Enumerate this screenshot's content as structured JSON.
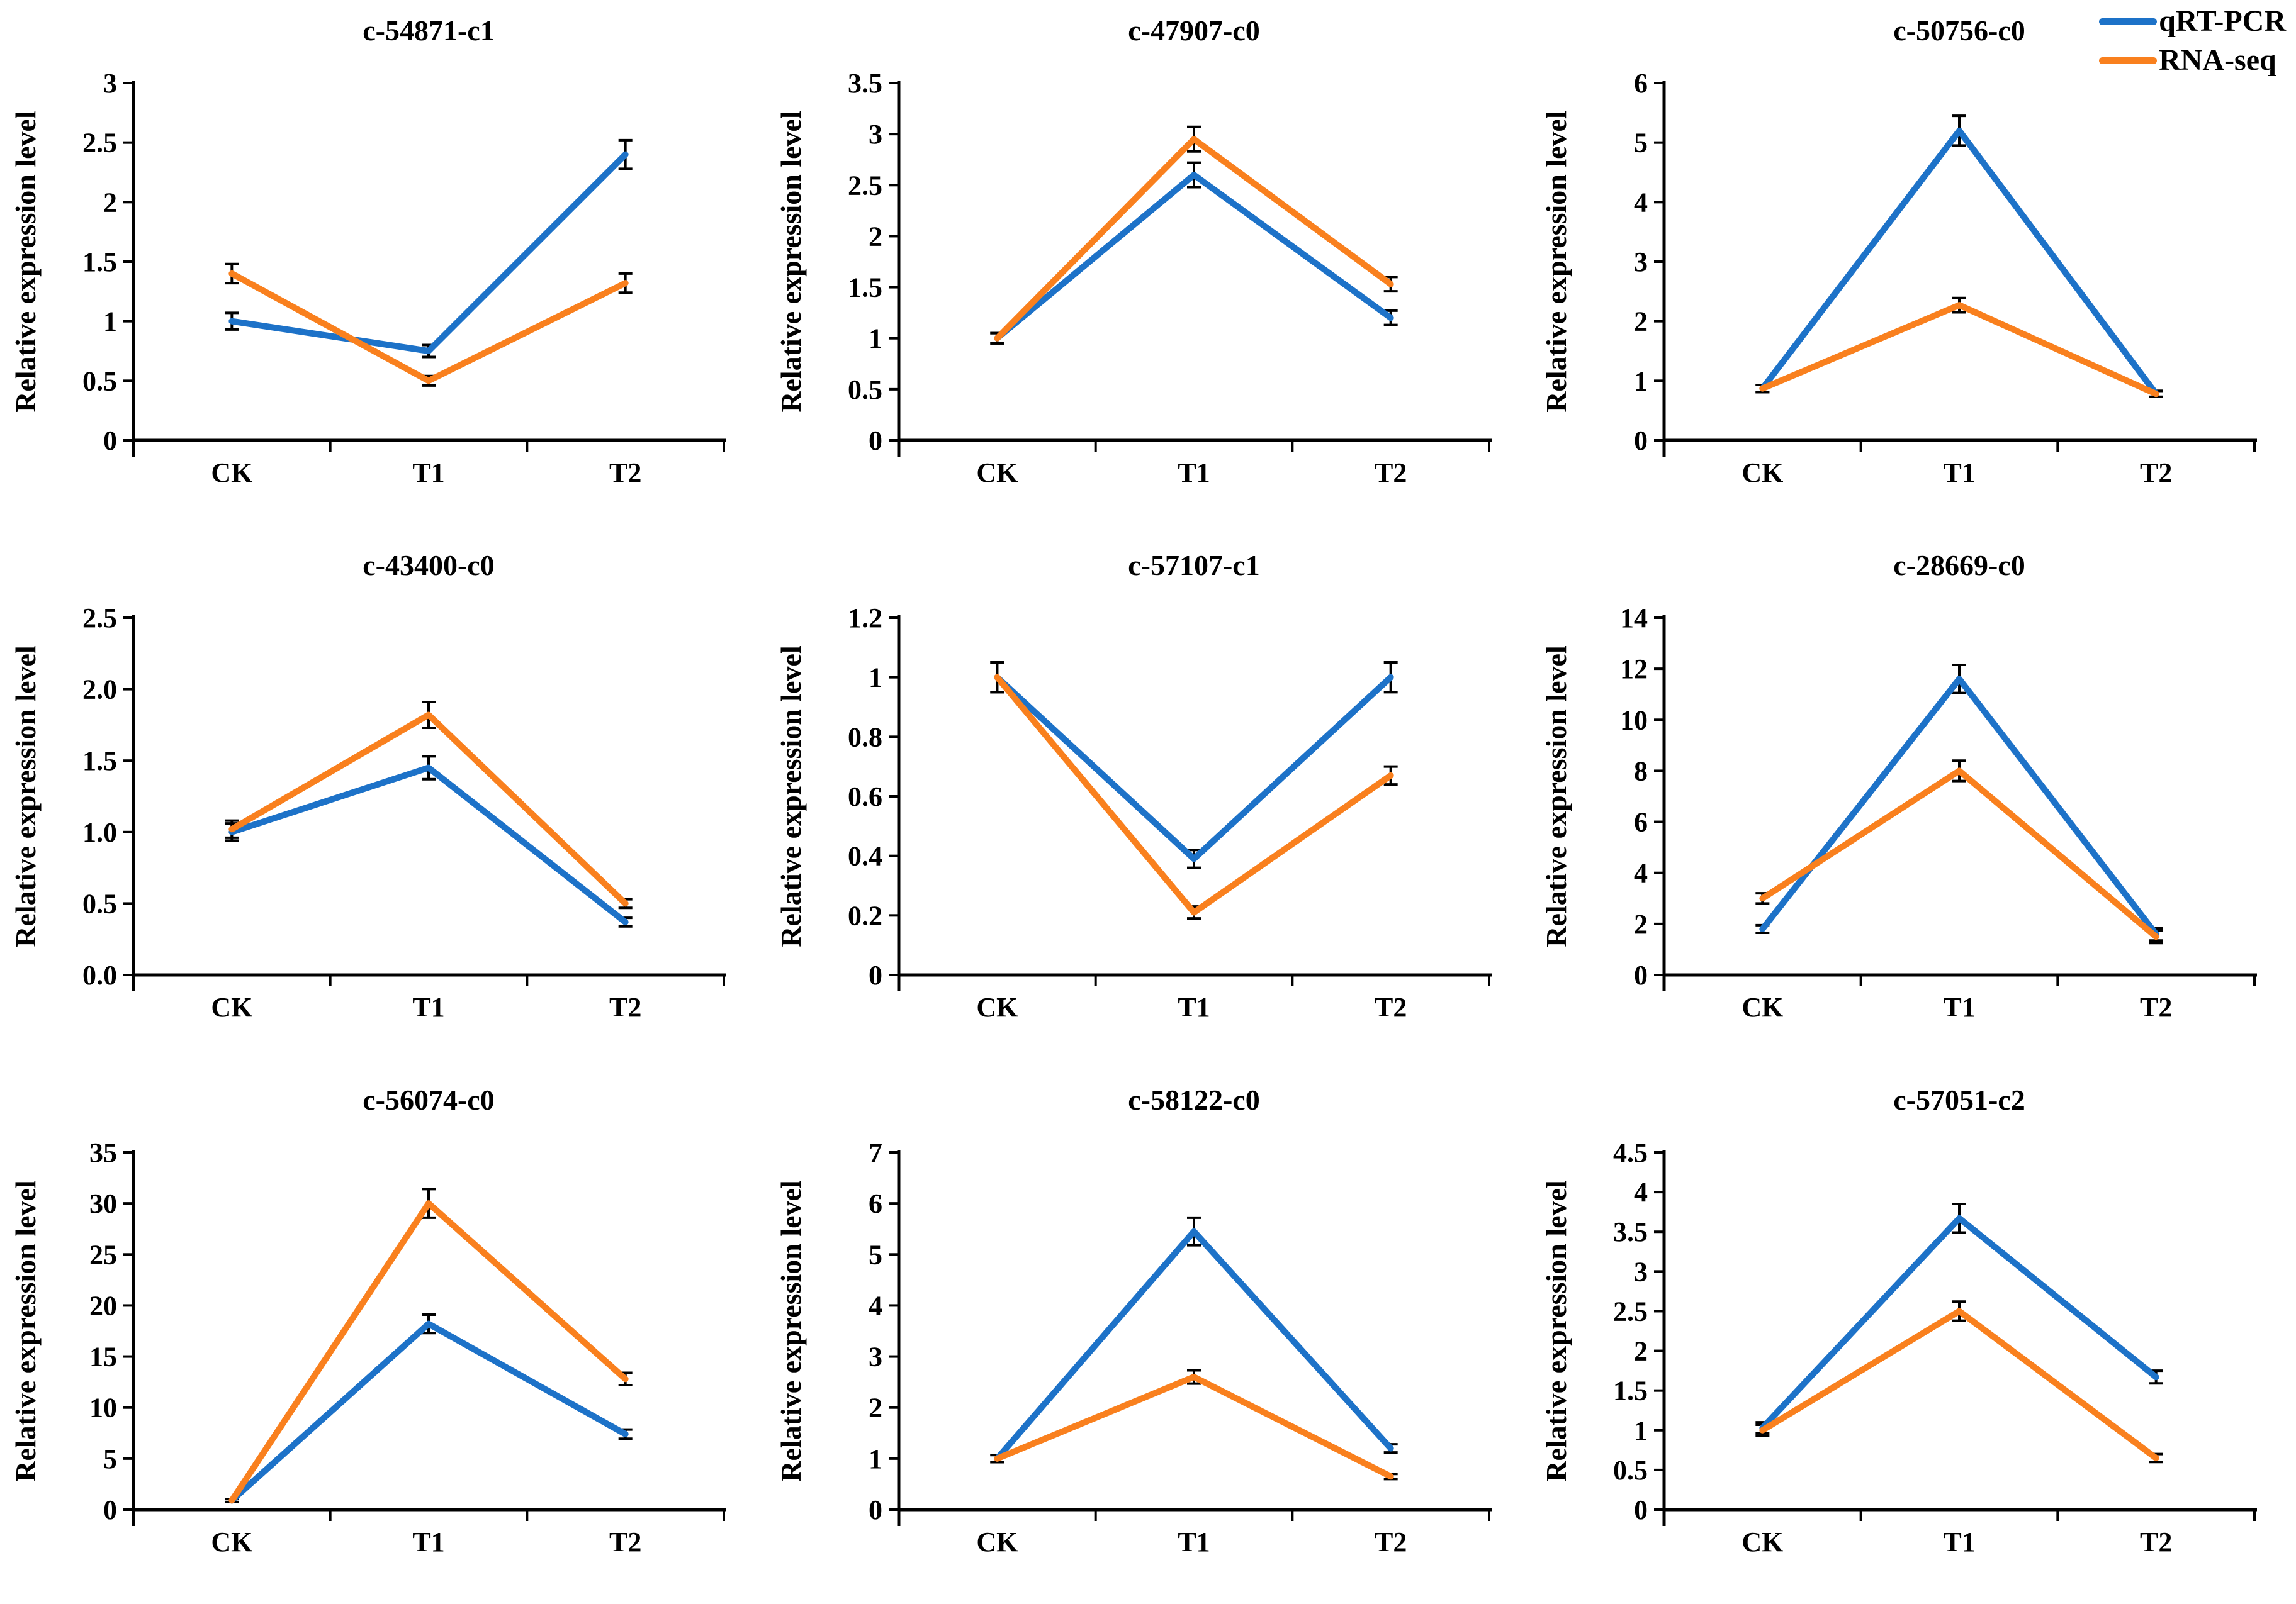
{
  "legend": {
    "position": "top-right",
    "items": [
      {
        "label": "qRT-PCR",
        "color": "#1d72c8"
      },
      {
        "label": "RNA-seq",
        "color": "#f9801e"
      }
    ]
  },
  "chart_data": [
    {
      "type": "line",
      "title": "c-54871-c1",
      "categories": [
        "CK",
        "T1",
        "T2"
      ],
      "xlabel": "",
      "ylabel": "Relative expression level",
      "ylim": [
        0,
        3
      ],
      "yticks": [
        "0",
        "0.5",
        "1",
        "1.5",
        "2",
        "2.5",
        "3"
      ],
      "grid": false,
      "series": [
        {
          "name": "qRT-PCR",
          "color": "#1d72c8",
          "values": [
            1.0,
            0.75,
            2.4
          ],
          "errors": [
            0.07,
            0.05,
            0.12
          ]
        },
        {
          "name": "RNA-seq",
          "color": "#f9801e",
          "values": [
            1.4,
            0.5,
            1.32
          ],
          "errors": [
            0.08,
            0.04,
            0.08
          ]
        }
      ]
    },
    {
      "type": "line",
      "title": "c-47907-c0",
      "categories": [
        "CK",
        "T1",
        "T2"
      ],
      "xlabel": "",
      "ylabel": "Relative expression level",
      "ylim": [
        0,
        3.5
      ],
      "yticks": [
        "0",
        "0.5",
        "1",
        "1.5",
        "2",
        "2.5",
        "3",
        "3.5"
      ],
      "grid": false,
      "series": [
        {
          "name": "qRT-PCR",
          "color": "#1d72c8",
          "values": [
            1.0,
            2.6,
            1.2
          ],
          "errors": [
            0.05,
            0.12,
            0.07
          ]
        },
        {
          "name": "RNA-seq",
          "color": "#f9801e",
          "values": [
            1.0,
            2.95,
            1.53
          ],
          "errors": [
            0.05,
            0.12,
            0.07
          ]
        }
      ]
    },
    {
      "type": "line",
      "title": "c-50756-c0",
      "categories": [
        "CK",
        "T1",
        "T2"
      ],
      "xlabel": "",
      "ylabel": "Relative expression level",
      "ylim": [
        0,
        6
      ],
      "yticks": [
        "0",
        "1",
        "2",
        "3",
        "4",
        "5",
        "6"
      ],
      "grid": false,
      "series": [
        {
          "name": "qRT-PCR",
          "color": "#1d72c8",
          "values": [
            0.87,
            5.2,
            0.78
          ],
          "errors": [
            0.06,
            0.25,
            0.05
          ]
        },
        {
          "name": "RNA-seq",
          "color": "#f9801e",
          "values": [
            0.87,
            2.27,
            0.78
          ],
          "errors": [
            0.06,
            0.12,
            0.05
          ]
        }
      ]
    },
    {
      "type": "line",
      "title": "c-43400-c0",
      "categories": [
        "CK",
        "T1",
        "T2"
      ],
      "xlabel": "",
      "ylabel": "Relative expression level",
      "ylim": [
        0,
        2.5
      ],
      "yticks": [
        "0.0",
        "0.5",
        "1.0",
        "1.5",
        "2.0",
        "2.5"
      ],
      "grid": false,
      "series": [
        {
          "name": "qRT-PCR",
          "color": "#1d72c8",
          "values": [
            1.0,
            1.45,
            0.37
          ],
          "errors": [
            0.06,
            0.08,
            0.03
          ]
        },
        {
          "name": "RNA-seq",
          "color": "#f9801e",
          "values": [
            1.02,
            1.82,
            0.5
          ],
          "errors": [
            0.06,
            0.09,
            0.03
          ]
        }
      ]
    },
    {
      "type": "line",
      "title": "c-57107-c1",
      "categories": [
        "CK",
        "T1",
        "T2"
      ],
      "xlabel": "",
      "ylabel": "Relative expression level",
      "ylim": [
        0,
        1.2
      ],
      "yticks": [
        "0",
        "0.2",
        "0.4",
        "0.6",
        "0.8",
        "1",
        "1.2"
      ],
      "grid": false,
      "series": [
        {
          "name": "qRT-PCR",
          "color": "#1d72c8",
          "values": [
            1.0,
            0.39,
            1.0
          ],
          "errors": [
            0.05,
            0.03,
            0.05
          ]
        },
        {
          "name": "RNA-seq",
          "color": "#f9801e",
          "values": [
            1.0,
            0.21,
            0.67
          ],
          "errors": [
            0.05,
            0.02,
            0.03
          ]
        }
      ]
    },
    {
      "type": "line",
      "title": "c-28669-c0",
      "categories": [
        "CK",
        "T1",
        "T2"
      ],
      "xlabel": "",
      "ylabel": "Relative expression level",
      "ylim": [
        0,
        14
      ],
      "yticks": [
        "0",
        "2",
        "4",
        "6",
        "8",
        "10",
        "12",
        "14"
      ],
      "grid": false,
      "series": [
        {
          "name": "qRT-PCR",
          "color": "#1d72c8",
          "values": [
            1.8,
            11.6,
            1.6
          ],
          "errors": [
            0.15,
            0.55,
            0.25
          ]
        },
        {
          "name": "RNA-seq",
          "color": "#f9801e",
          "values": [
            3.0,
            8.0,
            1.5
          ],
          "errors": [
            0.2,
            0.4,
            0.25
          ]
        }
      ]
    },
    {
      "type": "line",
      "title": "c-56074-c0",
      "categories": [
        "CK",
        "T1",
        "T2"
      ],
      "xlabel": "",
      "ylabel": "Relative expression level",
      "ylim": [
        0,
        35
      ],
      "yticks": [
        "0",
        "5",
        "10",
        "15",
        "20",
        "25",
        "30",
        "35"
      ],
      "grid": false,
      "series": [
        {
          "name": "qRT-PCR",
          "color": "#1d72c8",
          "values": [
            0.9,
            18.2,
            7.4
          ],
          "errors": [
            0.15,
            0.9,
            0.45
          ]
        },
        {
          "name": "RNA-seq",
          "color": "#f9801e",
          "values": [
            0.9,
            30.0,
            12.8
          ],
          "errors": [
            0.15,
            1.4,
            0.6
          ]
        }
      ]
    },
    {
      "type": "line",
      "title": "c-58122-c0",
      "categories": [
        "CK",
        "T1",
        "T2"
      ],
      "xlabel": "",
      "ylabel": "Relative expression level",
      "ylim": [
        0,
        7
      ],
      "yticks": [
        "0",
        "1",
        "2",
        "3",
        "4",
        "5",
        "6",
        "7"
      ],
      "grid": false,
      "series": [
        {
          "name": "qRT-PCR",
          "color": "#1d72c8",
          "values": [
            1.0,
            5.45,
            1.2
          ],
          "errors": [
            0.07,
            0.27,
            0.08
          ]
        },
        {
          "name": "RNA-seq",
          "color": "#f9801e",
          "values": [
            1.0,
            2.6,
            0.65
          ],
          "errors": [
            0.07,
            0.13,
            0.05
          ]
        }
      ]
    },
    {
      "type": "line",
      "title": "c-57051-c2",
      "categories": [
        "CK",
        "T1",
        "T2"
      ],
      "xlabel": "",
      "ylabel": "Relative expression level",
      "ylim": [
        0,
        4.5
      ],
      "yticks": [
        "0",
        "0.5",
        "1",
        "1.5",
        "2",
        "2.5",
        "3",
        "3.5",
        "4",
        "4.5"
      ],
      "grid": false,
      "series": [
        {
          "name": "qRT-PCR",
          "color": "#1d72c8",
          "values": [
            1.03,
            3.67,
            1.67
          ],
          "errors": [
            0.07,
            0.18,
            0.08
          ]
        },
        {
          "name": "RNA-seq",
          "color": "#f9801e",
          "values": [
            1.0,
            2.5,
            0.65
          ],
          "errors": [
            0.07,
            0.12,
            0.05
          ]
        }
      ]
    }
  ]
}
